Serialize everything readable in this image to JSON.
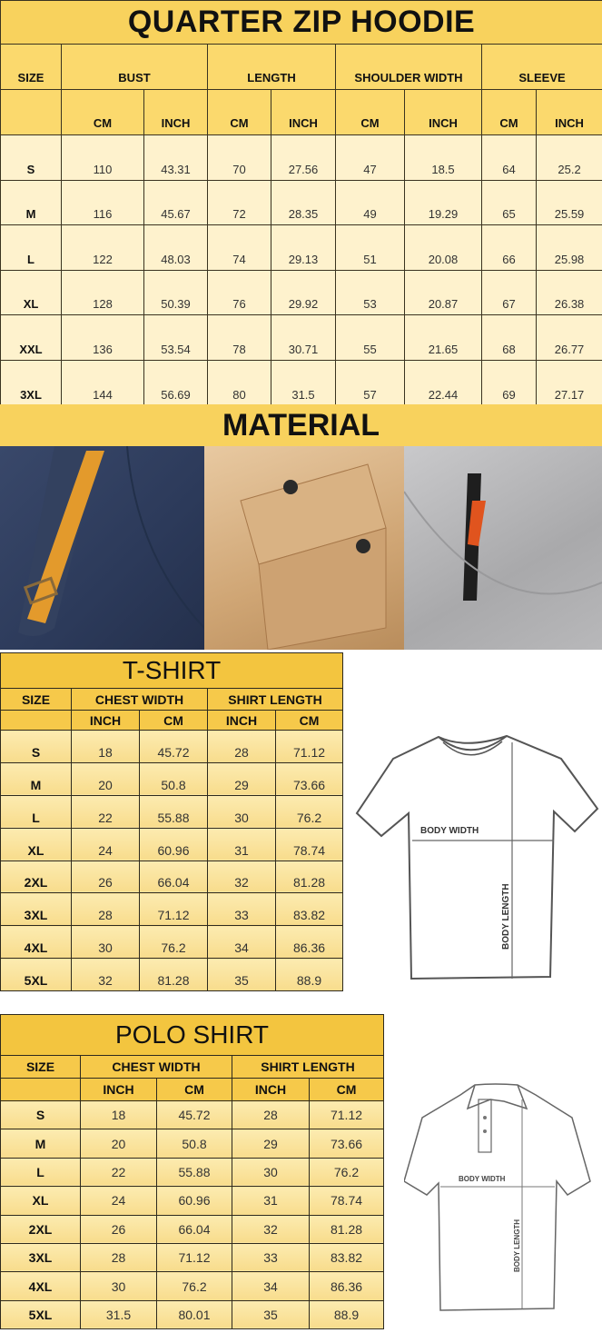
{
  "hoodie": {
    "title": "QUARTER ZIP HOODIE",
    "size_label": "SIZE",
    "groups": [
      "BUST",
      "LENGTH",
      "SHOULDER WIDTH",
      "SLEEVE"
    ],
    "units": [
      "CM",
      "INCH",
      "CM",
      "INCH",
      "CM",
      "INCH",
      "CM",
      "INCH"
    ],
    "rows": [
      [
        "S",
        "110",
        "43.31",
        "70",
        "27.56",
        "47",
        "18.5",
        "64",
        "25.2"
      ],
      [
        "M",
        "116",
        "45.67",
        "72",
        "28.35",
        "49",
        "19.29",
        "65",
        "25.59"
      ],
      [
        "L",
        "122",
        "48.03",
        "74",
        "29.13",
        "51",
        "20.08",
        "66",
        "25.98"
      ],
      [
        "XL",
        "128",
        "50.39",
        "76",
        "29.92",
        "53",
        "20.87",
        "67",
        "26.38"
      ],
      [
        "XXL",
        "136",
        "53.54",
        "78",
        "30.71",
        "55",
        "21.65",
        "68",
        "26.77"
      ],
      [
        "3XL",
        "144",
        "56.69",
        "80",
        "31.5",
        "57",
        "22.44",
        "69",
        "27.17"
      ]
    ]
  },
  "material": {
    "title": "MATERIAL",
    "photos": [
      "navy-fabric-pocket",
      "khaki-fabric-flap-pocket",
      "grey-fabric-zip-pocket"
    ]
  },
  "tshirt": {
    "title": "T-SHIRT",
    "size_label": "SIZE",
    "groups": [
      "CHEST WIDTH",
      "SHIRT LENGTH"
    ],
    "units": [
      "INCH",
      "CM",
      "INCH",
      "CM"
    ],
    "rows": [
      [
        "S",
        "18",
        "45.72",
        "28",
        "71.12"
      ],
      [
        "M",
        "20",
        "50.8",
        "29",
        "73.66"
      ],
      [
        "L",
        "22",
        "55.88",
        "30",
        "76.2"
      ],
      [
        "XL",
        "24",
        "60.96",
        "31",
        "78.74"
      ],
      [
        "2XL",
        "26",
        "66.04",
        "32",
        "81.28"
      ],
      [
        "3XL",
        "28",
        "71.12",
        "33",
        "83.82"
      ],
      [
        "4XL",
        "30",
        "76.2",
        "34",
        "86.36"
      ],
      [
        "5XL",
        "32",
        "81.28",
        "35",
        "88.9"
      ]
    ],
    "diagram": {
      "width_label": "BODY WIDTH",
      "length_label": "BODY LENGTH"
    }
  },
  "polo": {
    "title": "POLO SHIRT",
    "size_label": "SIZE",
    "groups": [
      "CHEST WIDTH",
      "SHIRT LENGTH"
    ],
    "units": [
      "INCH",
      "CM",
      "INCH",
      "CM"
    ],
    "rows": [
      [
        "S",
        "18",
        "45.72",
        "28",
        "71.12"
      ],
      [
        "M",
        "20",
        "50.8",
        "29",
        "73.66"
      ],
      [
        "L",
        "22",
        "55.88",
        "30",
        "76.2"
      ],
      [
        "XL",
        "24",
        "60.96",
        "31",
        "78.74"
      ],
      [
        "2XL",
        "26",
        "66.04",
        "32",
        "81.28"
      ],
      [
        "3XL",
        "28",
        "71.12",
        "33",
        "83.82"
      ],
      [
        "4XL",
        "30",
        "76.2",
        "34",
        "86.36"
      ],
      [
        "5XL",
        "31.5",
        "80.01",
        "35",
        "88.9"
      ]
    ],
    "diagram": {
      "width_label": "BODY WIDTH",
      "length_label": "BODY LENGTH"
    }
  }
}
